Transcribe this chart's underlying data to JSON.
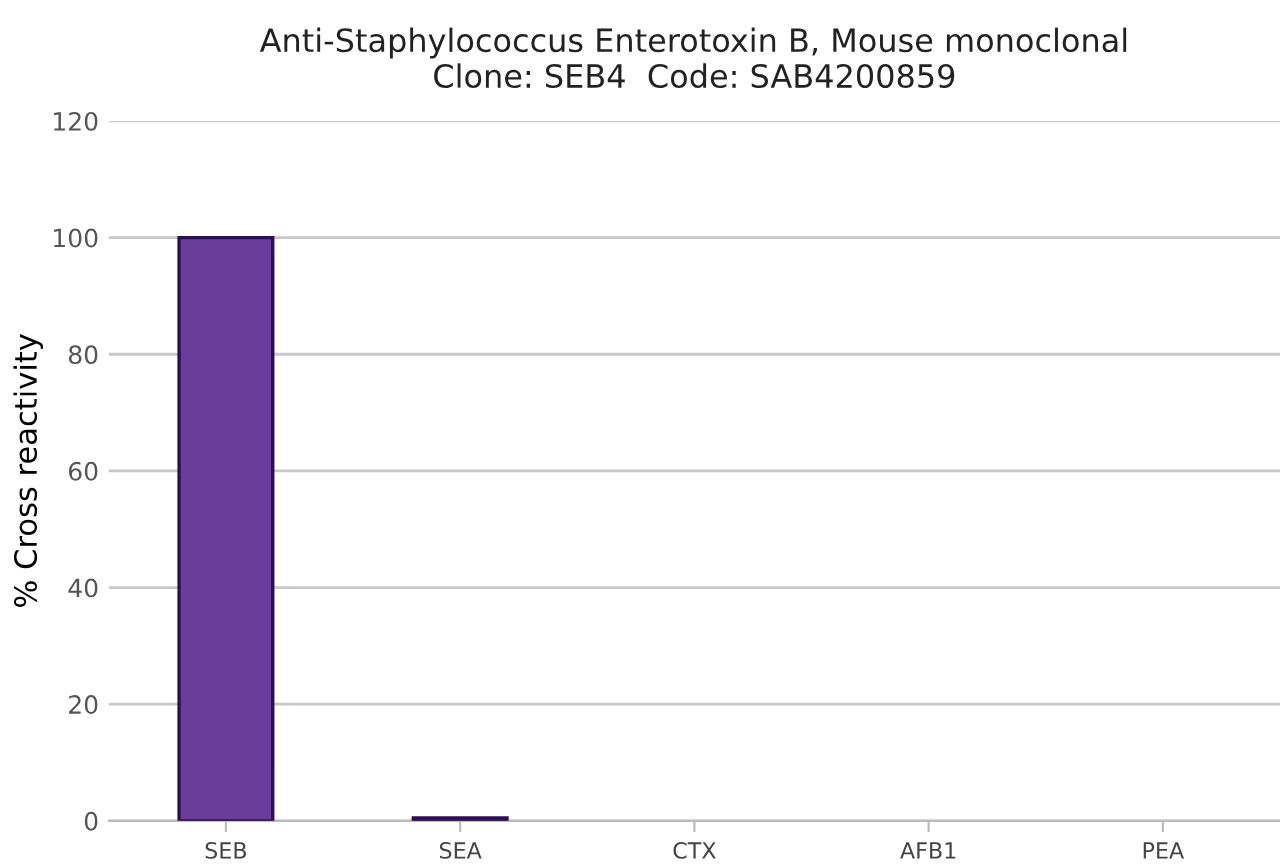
{
  "chart_data": {
    "type": "bar",
    "title": "Anti-Staphylococcus Enterotoxin B, Mouse monoclonal\nClone: SEB4  Code: SAB4200859",
    "ylabel": "% Cross reactivity",
    "categories": [
      "SEB",
      "SEA",
      "CTX",
      "AFB1",
      "PEA"
    ],
    "values": [
      100,
      0.5,
      0,
      0,
      0
    ],
    "color": "#6a3d9a",
    "ylim": [
      0,
      120
    ],
    "yticks": [
      0,
      20,
      40,
      60,
      80,
      100,
      120
    ],
    "grid": "y"
  }
}
